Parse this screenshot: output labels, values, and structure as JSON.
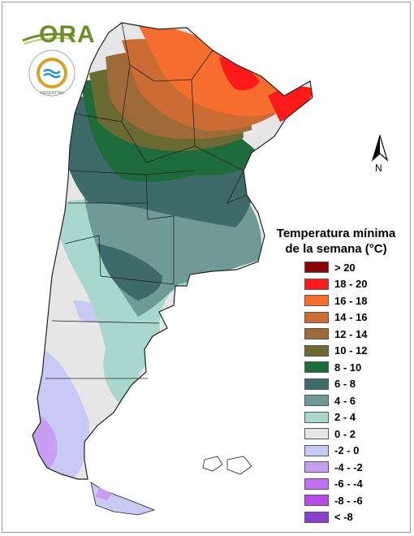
{
  "header": {
    "logo_text": "ORA",
    "seal_text": "SERVICIO METEOROLÓGICO NACIONAL · ARGENTINA"
  },
  "compass": {
    "label": "N"
  },
  "legend": {
    "title_line1": "Temperatura mínima",
    "title_line2": "de la semana (°C)",
    "items": [
      {
        "label": "> 20",
        "color": "#8b0000"
      },
      {
        "label": "18 - 20",
        "color": "#ff1a1a"
      },
      {
        "label": "16 - 18",
        "color": "#f56e2e"
      },
      {
        "label": "14 - 16",
        "color": "#cc6b33"
      },
      {
        "label": "12 - 14",
        "color": "#9d6a38"
      },
      {
        "label": "10 - 12",
        "color": "#6b6a32"
      },
      {
        "label": "8 - 10",
        "color": "#1e6b3b"
      },
      {
        "label": "6 - 8",
        "color": "#3e6a6a"
      },
      {
        "label": "4 - 6",
        "color": "#6f9a98"
      },
      {
        "label": "2 - 4",
        "color": "#a8d8cd"
      },
      {
        "label": "0 - 2",
        "color": "#e6e6e6"
      },
      {
        "label": "-2 - 0",
        "color": "#c9c9f6"
      },
      {
        "label": "-4 - -2",
        "color": "#c79ef2"
      },
      {
        "label": "-6 - -4",
        "color": "#c272ef"
      },
      {
        "label": "-8 - -6",
        "color": "#b84be6"
      },
      {
        "label": "< -8",
        "color": "#8b3fd0"
      }
    ]
  }
}
